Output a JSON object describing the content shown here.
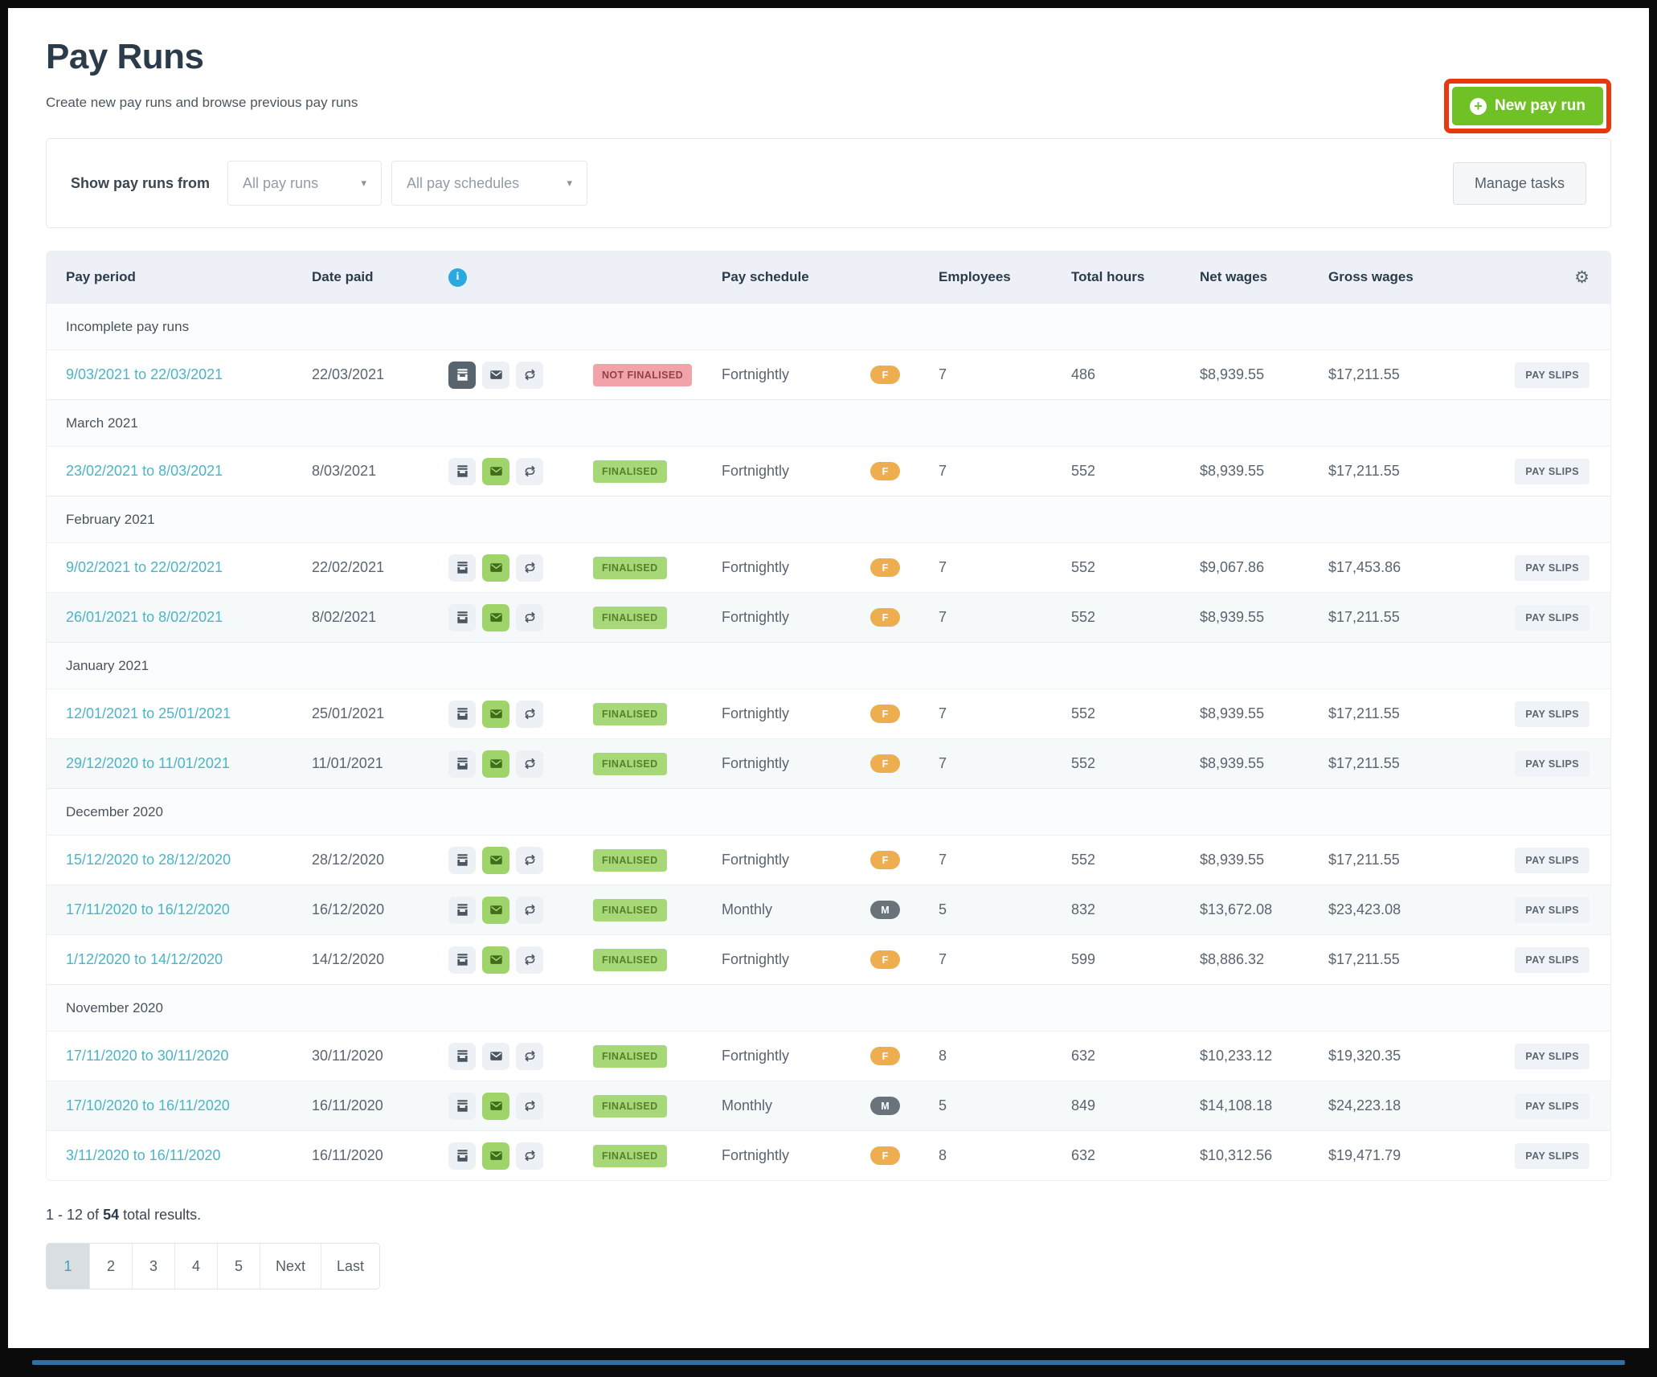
{
  "page": {
    "title": "Pay Runs",
    "subtitle": "Create new pay runs and browse previous pay runs"
  },
  "header": {
    "new_pay_run_label": "New pay run"
  },
  "filters": {
    "label": "Show pay runs from",
    "pay_runs_dropdown_value": "All pay runs",
    "schedules_dropdown_value": "All pay schedules",
    "manage_tasks_label": "Manage tasks"
  },
  "table": {
    "columns": {
      "pay_period": "Pay period",
      "date_paid": "Date paid",
      "pay_schedule": "Pay schedule",
      "employees": "Employees",
      "total_hours": "Total hours",
      "net_wages": "Net wages",
      "gross_wages": "Gross wages"
    },
    "pay_slips_label": "PAY SLIPS",
    "sections": [
      {
        "label": "Incomplete pay runs",
        "rows": [
          {
            "period": "9/03/2021 to 22/03/2021",
            "date_paid": "22/03/2021",
            "journal_style": "dark",
            "envelope_style": "light",
            "status_label": "NOT FINALISED",
            "status_type": "danger",
            "schedule": "Fortnightly",
            "schedule_code": "F",
            "schedule_type": "fortnightly",
            "employees": "7",
            "total_hours": "486",
            "net_wages": "$8,939.55",
            "gross_wages": "$17,211.55"
          }
        ]
      },
      {
        "label": "March 2021",
        "rows": [
          {
            "period": "23/02/2021 to 8/03/2021",
            "date_paid": "8/03/2021",
            "journal_style": "light",
            "envelope_style": "green",
            "status_label": "FINALISED",
            "status_type": "success",
            "schedule": "Fortnightly",
            "schedule_code": "F",
            "schedule_type": "fortnightly",
            "employees": "7",
            "total_hours": "552",
            "net_wages": "$8,939.55",
            "gross_wages": "$17,211.55"
          }
        ]
      },
      {
        "label": "February 2021",
        "rows": [
          {
            "period": "9/02/2021 to 22/02/2021",
            "date_paid": "22/02/2021",
            "journal_style": "light",
            "envelope_style": "green",
            "status_label": "FINALISED",
            "status_type": "success",
            "schedule": "Fortnightly",
            "schedule_code": "F",
            "schedule_type": "fortnightly",
            "employees": "7",
            "total_hours": "552",
            "net_wages": "$9,067.86",
            "gross_wages": "$17,453.86"
          },
          {
            "period": "26/01/2021 to 8/02/2021",
            "date_paid": "8/02/2021",
            "journal_style": "light",
            "envelope_style": "green",
            "status_label": "FINALISED",
            "status_type": "success",
            "schedule": "Fortnightly",
            "schedule_code": "F",
            "schedule_type": "fortnightly",
            "employees": "7",
            "total_hours": "552",
            "net_wages": "$8,939.55",
            "gross_wages": "$17,211.55"
          }
        ]
      },
      {
        "label": "January 2021",
        "rows": [
          {
            "period": "12/01/2021 to 25/01/2021",
            "date_paid": "25/01/2021",
            "journal_style": "light",
            "envelope_style": "green",
            "status_label": "FINALISED",
            "status_type": "success",
            "schedule": "Fortnightly",
            "schedule_code": "F",
            "schedule_type": "fortnightly",
            "employees": "7",
            "total_hours": "552",
            "net_wages": "$8,939.55",
            "gross_wages": "$17,211.55"
          },
          {
            "period": "29/12/2020 to 11/01/2021",
            "date_paid": "11/01/2021",
            "journal_style": "light",
            "envelope_style": "green",
            "status_label": "FINALISED",
            "status_type": "success",
            "schedule": "Fortnightly",
            "schedule_code": "F",
            "schedule_type": "fortnightly",
            "employees": "7",
            "total_hours": "552",
            "net_wages": "$8,939.55",
            "gross_wages": "$17,211.55"
          }
        ]
      },
      {
        "label": "December 2020",
        "rows": [
          {
            "period": "15/12/2020 to 28/12/2020",
            "date_paid": "28/12/2020",
            "journal_style": "light",
            "envelope_style": "green",
            "status_label": "FINALISED",
            "status_type": "success",
            "schedule": "Fortnightly",
            "schedule_code": "F",
            "schedule_type": "fortnightly",
            "employees": "7",
            "total_hours": "552",
            "net_wages": "$8,939.55",
            "gross_wages": "$17,211.55"
          },
          {
            "period": "17/11/2020 to 16/12/2020",
            "date_paid": "16/12/2020",
            "journal_style": "light",
            "envelope_style": "green",
            "status_label": "FINALISED",
            "status_type": "success",
            "schedule": "Monthly",
            "schedule_code": "M",
            "schedule_type": "monthly",
            "employees": "5",
            "total_hours": "832",
            "net_wages": "$13,672.08",
            "gross_wages": "$23,423.08"
          },
          {
            "period": "1/12/2020 to 14/12/2020",
            "date_paid": "14/12/2020",
            "journal_style": "light",
            "envelope_style": "green",
            "status_label": "FINALISED",
            "status_type": "success",
            "schedule": "Fortnightly",
            "schedule_code": "F",
            "schedule_type": "fortnightly",
            "employees": "7",
            "total_hours": "599",
            "net_wages": "$8,886.32",
            "gross_wages": "$17,211.55"
          }
        ]
      },
      {
        "label": "November 2020",
        "rows": [
          {
            "period": "17/11/2020 to 30/11/2020",
            "date_paid": "30/11/2020",
            "journal_style": "light",
            "envelope_style": "light",
            "status_label": "FINALISED",
            "status_type": "success",
            "schedule": "Fortnightly",
            "schedule_code": "F",
            "schedule_type": "fortnightly",
            "employees": "8",
            "total_hours": "632",
            "net_wages": "$10,233.12",
            "gross_wages": "$19,320.35"
          },
          {
            "period": "17/10/2020 to 16/11/2020",
            "date_paid": "16/11/2020",
            "journal_style": "light",
            "envelope_style": "green",
            "status_label": "FINALISED",
            "status_type": "success",
            "schedule": "Monthly",
            "schedule_code": "M",
            "schedule_type": "monthly",
            "employees": "5",
            "total_hours": "849",
            "net_wages": "$14,108.18",
            "gross_wages": "$24,223.18"
          },
          {
            "period": "3/11/2020 to 16/11/2020",
            "date_paid": "16/11/2020",
            "journal_style": "light",
            "envelope_style": "green",
            "status_label": "FINALISED",
            "status_type": "success",
            "schedule": "Fortnightly",
            "schedule_code": "F",
            "schedule_type": "fortnightly",
            "employees": "8",
            "total_hours": "632",
            "net_wages": "$10,312.56",
            "gross_wages": "$19,471.79"
          }
        ]
      }
    ]
  },
  "footer": {
    "results_prefix": "1 - 12 of",
    "results_total": "54",
    "results_suffix": "total results.",
    "pagination": [
      "1",
      "2",
      "3",
      "4",
      "5",
      "Next",
      "Last"
    ],
    "active_page": "1"
  },
  "colors": {
    "accent_green": "#70c125",
    "annotation_red": "#e8390e",
    "link_teal": "#4ab5c4",
    "badge_danger_bg": "#f2a3a9",
    "badge_danger_text": "#8e4249",
    "badge_success_bg": "#a6d878",
    "badge_success_text": "#567f2a",
    "pill_fortnightly": "#ecae4e",
    "pill_monthly": "#6a737b",
    "info_blue": "#29a9e0",
    "header_row_bg": "#edf1f7"
  }
}
